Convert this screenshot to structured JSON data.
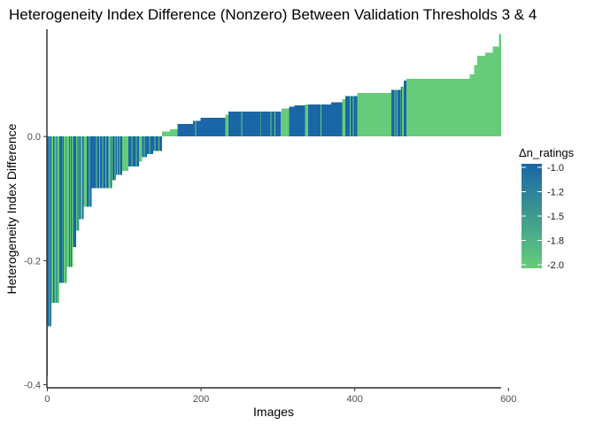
{
  "chart_data": {
    "type": "bar",
    "title": "Heterogeneity Index Difference (Nonzero) Between Validation Thresholds 3 & 4",
    "xlabel": "Images",
    "ylabel": "Heterogeneity Index Difference",
    "xlim": [
      -0.5,
      590.5
    ],
    "ylim": [
      -0.405,
      0.173
    ],
    "x_ticks": [
      "0",
      "200",
      "400",
      "600"
    ],
    "y_ticks": [
      "-0.4",
      "-0.2",
      "0.0"
    ],
    "x_tick_values": [
      0,
      200,
      400,
      600
    ],
    "y_tick_values": [
      -0.4,
      -0.2,
      0.0
    ],
    "grid": false,
    "legend_position": "right",
    "legend": {
      "title": "Δn_ratings",
      "labels": [
        "-1.0",
        "-1.2",
        "-1.5",
        "-1.8",
        "-2.0"
      ],
      "values": [
        -1.0,
        -1.25,
        -1.5,
        -1.75,
        -2.0
      ],
      "color_low": "#66CC7A",
      "color_high": "#1B66A6"
    },
    "colors": {
      "dn_-1": "#1B66A6",
      "dn_-2": "#66CC7A"
    },
    "segments": [
      {
        "start": 0,
        "end": 0,
        "value": -0.385,
        "dn": -2
      },
      {
        "start": 1,
        "end": 5,
        "value": -0.306,
        "dn": -1
      },
      {
        "start": 6,
        "end": 7,
        "value": -0.268,
        "dn": -2
      },
      {
        "start": 8,
        "end": 9,
        "value": -0.268,
        "dn": -1
      },
      {
        "start": 10,
        "end": 15,
        "value": -0.268,
        "dn": -2
      },
      {
        "start": 16,
        "end": 19,
        "value": -0.236,
        "dn": -1
      },
      {
        "start": 20,
        "end": 25,
        "value": -0.236,
        "dn": -2
      },
      {
        "start": 26,
        "end": 33,
        "value": -0.21,
        "dn": -2
      },
      {
        "start": 34,
        "end": 37,
        "value": -0.178,
        "dn": -1
      },
      {
        "start": 38,
        "end": 41,
        "value": -0.152,
        "dn": -2
      },
      {
        "start": 42,
        "end": 47,
        "value": -0.133,
        "dn": -1
      },
      {
        "start": 48,
        "end": 51,
        "value": -0.113,
        "dn": -2
      },
      {
        "start": 52,
        "end": 57,
        "value": -0.113,
        "dn": -1
      },
      {
        "start": 58,
        "end": 79,
        "value": -0.083,
        "dn": -1
      },
      {
        "start": 80,
        "end": 84,
        "value": -0.083,
        "dn": -2
      },
      {
        "start": 85,
        "end": 89,
        "value": -0.07,
        "dn": -1
      },
      {
        "start": 90,
        "end": 97,
        "value": -0.062,
        "dn": -1
      },
      {
        "start": 98,
        "end": 105,
        "value": -0.055,
        "dn": -2
      },
      {
        "start": 106,
        "end": 119,
        "value": -0.048,
        "dn": -1
      },
      {
        "start": 120,
        "end": 123,
        "value": -0.04,
        "dn": -2
      },
      {
        "start": 124,
        "end": 129,
        "value": -0.033,
        "dn": -1
      },
      {
        "start": 130,
        "end": 137,
        "value": -0.028,
        "dn": -1
      },
      {
        "start": 138,
        "end": 149,
        "value": -0.023,
        "dn": -1
      },
      {
        "start": 150,
        "end": 159,
        "value": 0.008,
        "dn": -2
      },
      {
        "start": 160,
        "end": 169,
        "value": 0.012,
        "dn": -2
      },
      {
        "start": 170,
        "end": 189,
        "value": 0.02,
        "dn": -1
      },
      {
        "start": 190,
        "end": 199,
        "value": 0.025,
        "dn": -1
      },
      {
        "start": 200,
        "end": 231,
        "value": 0.03,
        "dn": -1
      },
      {
        "start": 232,
        "end": 235,
        "value": 0.035,
        "dn": -2
      },
      {
        "start": 236,
        "end": 244,
        "value": 0.04,
        "dn": -1
      },
      {
        "start": 245,
        "end": 304,
        "value": 0.04,
        "dn": -1
      },
      {
        "start": 305,
        "end": 314,
        "value": 0.045,
        "dn": -2
      },
      {
        "start": 315,
        "end": 321,
        "value": 0.048,
        "dn": -1
      },
      {
        "start": 322,
        "end": 335,
        "value": 0.05,
        "dn": -1
      },
      {
        "start": 336,
        "end": 339,
        "value": 0.052,
        "dn": -2
      },
      {
        "start": 340,
        "end": 369,
        "value": 0.052,
        "dn": -1
      },
      {
        "start": 370,
        "end": 383,
        "value": 0.055,
        "dn": -1
      },
      {
        "start": 384,
        "end": 387,
        "value": 0.06,
        "dn": -2
      },
      {
        "start": 388,
        "end": 403,
        "value": 0.065,
        "dn": -1
      },
      {
        "start": 404,
        "end": 447,
        "value": 0.07,
        "dn": -2
      },
      {
        "start": 448,
        "end": 459,
        "value": 0.075,
        "dn": -1
      },
      {
        "start": 460,
        "end": 463,
        "value": 0.08,
        "dn": -2
      },
      {
        "start": 464,
        "end": 467,
        "value": 0.09,
        "dn": -1
      },
      {
        "start": 468,
        "end": 549,
        "value": 0.093,
        "dn": -2
      },
      {
        "start": 550,
        "end": 555,
        "value": 0.1,
        "dn": -2
      },
      {
        "start": 556,
        "end": 559,
        "value": 0.115,
        "dn": -2
      },
      {
        "start": 560,
        "end": 569,
        "value": 0.13,
        "dn": -2
      },
      {
        "start": 570,
        "end": 579,
        "value": 0.135,
        "dn": -2
      },
      {
        "start": 580,
        "end": 587,
        "value": 0.145,
        "dn": -2
      },
      {
        "start": 588,
        "end": 590,
        "value": 0.165,
        "dn": -2
      }
    ],
    "stripes": [
      {
        "x": 3,
        "dn": -2
      },
      {
        "x": 12,
        "dn": -1
      },
      {
        "x": 21,
        "dn": -1
      },
      {
        "x": 24,
        "dn": -1
      },
      {
        "x": 29,
        "dn": -1
      },
      {
        "x": 31,
        "dn": -1
      },
      {
        "x": 40,
        "dn": -1
      },
      {
        "x": 44,
        "dn": -2
      },
      {
        "x": 45,
        "dn": -2
      },
      {
        "x": 55,
        "dn": -2
      },
      {
        "x": 64,
        "dn": -2
      },
      {
        "x": 68,
        "dn": -2
      },
      {
        "x": 72,
        "dn": -2
      },
      {
        "x": 76,
        "dn": -2
      },
      {
        "x": 83,
        "dn": -1
      },
      {
        "x": 88,
        "dn": -2
      },
      {
        "x": 91,
        "dn": -2
      },
      {
        "x": 94,
        "dn": -2
      },
      {
        "x": 110,
        "dn": -2
      },
      {
        "x": 116,
        "dn": -2
      },
      {
        "x": 120,
        "dn": -2
      },
      {
        "x": 126,
        "dn": -2
      },
      {
        "x": 133,
        "dn": -2
      },
      {
        "x": 140,
        "dn": -2
      },
      {
        "x": 145,
        "dn": -2
      },
      {
        "x": 193,
        "dn": -2
      },
      {
        "x": 253,
        "dn": -2
      },
      {
        "x": 278,
        "dn": -2
      },
      {
        "x": 291,
        "dn": -2
      },
      {
        "x": 296,
        "dn": -2
      },
      {
        "x": 356,
        "dn": -2
      },
      {
        "x": 394,
        "dn": -2
      },
      {
        "x": 398,
        "dn": -2
      },
      {
        "x": 452,
        "dn": -2
      },
      {
        "x": 455,
        "dn": -2
      },
      {
        "x": 461,
        "dn": -1
      }
    ]
  }
}
